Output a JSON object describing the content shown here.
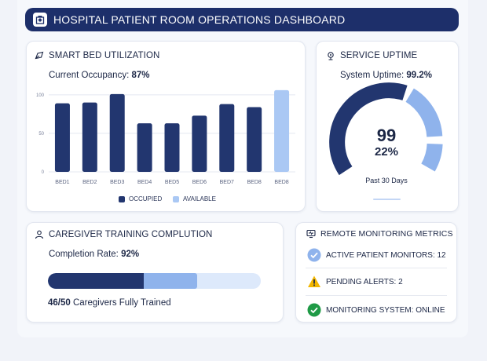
{
  "header": {
    "title": "HOSPITAL PATIENT ROOM OPERATIONS DASHBOARD",
    "icon": "hospital-icon"
  },
  "bed_utilization": {
    "title": "SMART BED UTILIZATION",
    "occupancy_label": "Current Occupancy:",
    "occupancy_value": "87%",
    "legend": {
      "occupied": "OCCUPIED",
      "available": "AVAILABLE"
    }
  },
  "uptime": {
    "title": "SERVICE UPTIME",
    "label": "System Uptime:",
    "value": "99.2%",
    "gauge_big": "99",
    "gauge_small": "22%",
    "period": "Past 30 Days"
  },
  "training": {
    "title": "CAREGIVER TRAINING COMPLUTION",
    "rate_label": "Completion Rate:",
    "rate_value": "92%",
    "count": "46/50",
    "count_suffix": "Caregivers Fully Trained",
    "bar_fractions": {
      "dark": 0.45,
      "light": 0.25
    }
  },
  "monitoring": {
    "title": "REMOTE MONITORING METRICS",
    "items": [
      {
        "label": "ACTIVE PATIENT MONITORS: 12",
        "icon": "check-circle-icon"
      },
      {
        "label": "PENDING ALERTS: 2",
        "icon": "warning-icon"
      },
      {
        "label": "MONITORING SYSTEM: ONLINE",
        "icon": "online-check-icon"
      }
    ]
  },
  "colors": {
    "navy": "#1d2f6a",
    "occupied": "#22366f",
    "available": "#aac8f4",
    "light_blue": "#8fb3ec",
    "warning": "#f2b600",
    "ok_green": "#1f9a46"
  },
  "chart_data": {
    "type": "bar",
    "categories": [
      "BED1",
      "BED2",
      "BED3",
      "BED4",
      "BED5",
      "BED6",
      "BED7",
      "BED8",
      "BED8"
    ],
    "series": [
      {
        "name": "OCCUPIED",
        "values": [
          89,
          90,
          101,
          63,
          63,
          73,
          88,
          84,
          85
        ]
      },
      {
        "name": "AVAILABLE",
        "values": [
          0,
          0,
          0,
          0,
          0,
          0,
          0,
          0,
          106
        ]
      }
    ],
    "yticks": [
      0,
      50,
      100
    ],
    "ylim": [
      0,
      110
    ],
    "grid": true,
    "legend": "bottom-center"
  }
}
